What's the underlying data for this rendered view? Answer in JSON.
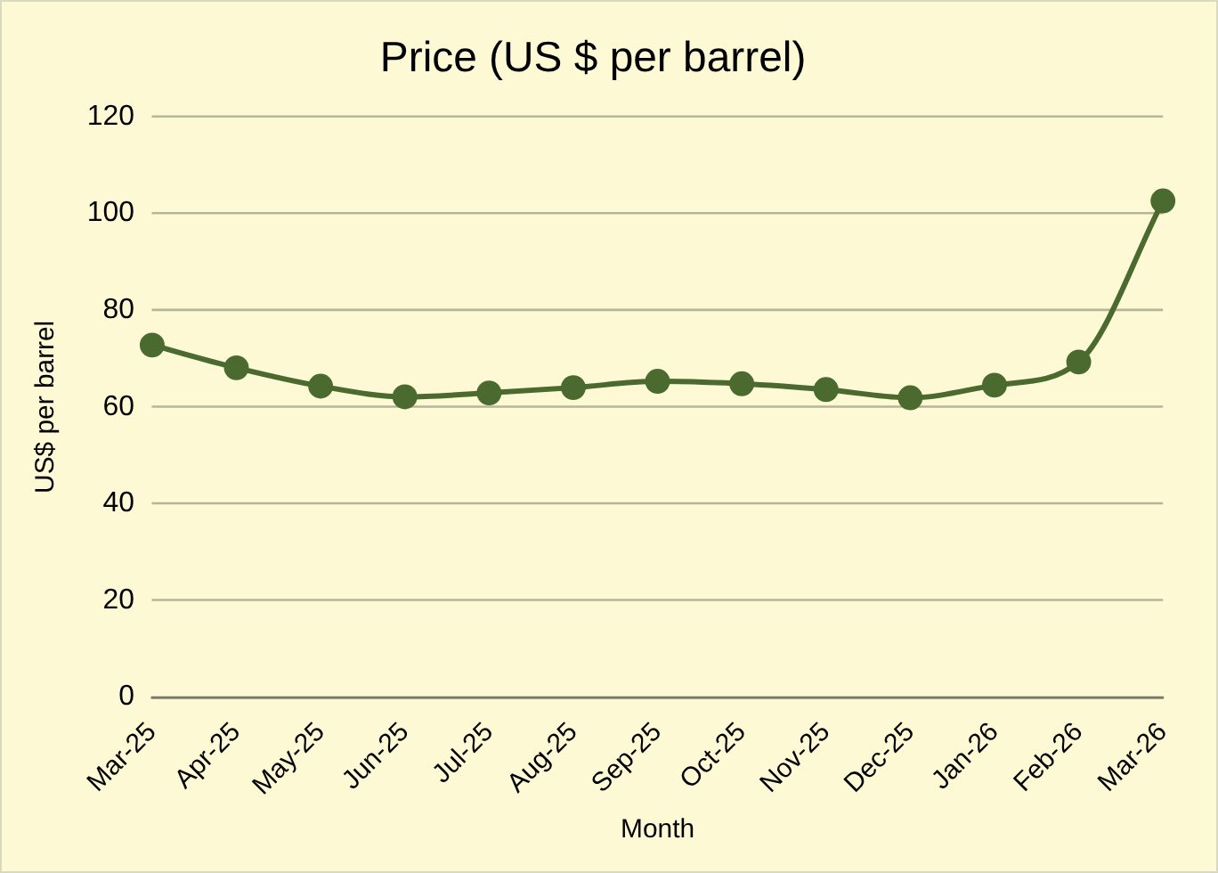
{
  "chart_data": {
    "type": "line",
    "title": "Price (US $ per barrel)",
    "xlabel": "Month",
    "ylabel": "US$ per barrel",
    "categories": [
      "Mar-25",
      "Apr-25",
      "May-25",
      "Jun-25",
      "Jul-25",
      "Aug-25",
      "Sep-25",
      "Oct-25",
      "Nov-25",
      "Dec-25",
      "Jan-26",
      "Feb-26",
      "Mar-26"
    ],
    "series": [
      {
        "color": "#4a6a2f",
        "values": [
          72.8,
          68.1,
          64.3,
          62.1,
          62.9,
          64.0,
          65.3,
          64.8,
          63.6,
          61.9,
          64.5,
          69.3,
          102.6
        ]
      }
    ],
    "ylim": [
      0,
      120
    ],
    "yticks": [
      0,
      20,
      40,
      60,
      80,
      100,
      120
    ],
    "grid": "y",
    "legend": false,
    "marker": "circle",
    "line_style": "solid"
  }
}
